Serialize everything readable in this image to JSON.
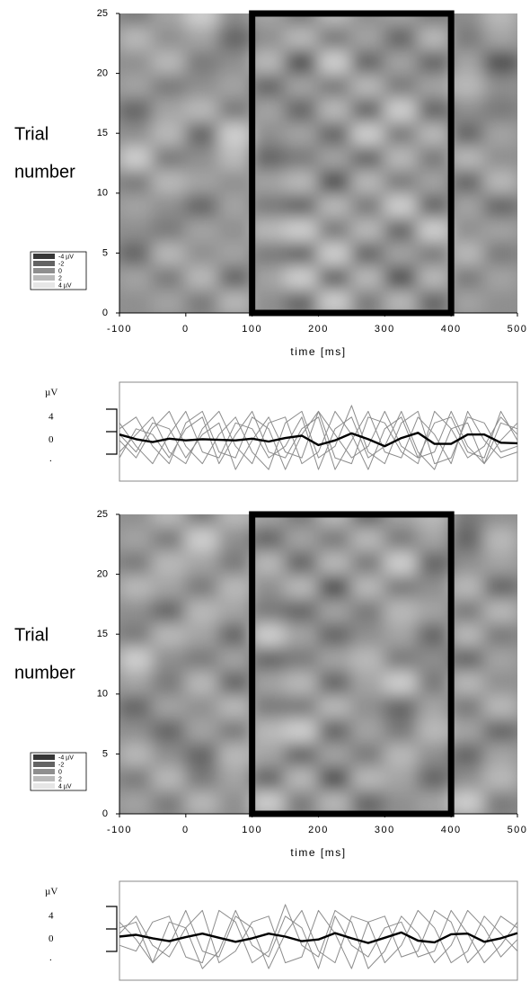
{
  "chart_data": [
    {
      "type": "heatmap",
      "ylabel_lines": [
        "Trial",
        "number"
      ],
      "xlabel": "time [ms]",
      "xlim": [
        -100,
        500
      ],
      "xticks": [
        -100,
        0,
        100,
        200,
        300,
        400,
        500
      ],
      "ylim": [
        0,
        25
      ],
      "yticks": [
        0,
        5,
        10,
        15,
        20,
        25
      ],
      "highlight_x": [
        100,
        400
      ],
      "zlim": [
        -4,
        4
      ],
      "legend_ticks": [
        {
          "value": -4,
          "label": "-4 µV"
        },
        -2,
        0,
        2,
        {
          "value": 4,
          "label": "4 µV"
        }
      ],
      "x": [
        -75,
        -25,
        25,
        75,
        125,
        175,
        225,
        275,
        325,
        375,
        425,
        475
      ],
      "y": [
        1,
        3,
        5,
        7,
        9,
        11,
        13,
        15,
        17,
        19,
        21,
        23,
        25
      ],
      "z": [
        [
          0,
          1,
          -1,
          2,
          0,
          -2,
          3,
          -1,
          2,
          -2,
          1,
          0
        ],
        [
          1,
          -1,
          2,
          -2,
          1,
          3,
          -2,
          2,
          -3,
          2,
          -1,
          1
        ],
        [
          -2,
          2,
          0,
          1,
          -1,
          -2,
          3,
          -2,
          1,
          -1,
          2,
          -1
        ],
        [
          0,
          -1,
          1,
          0,
          2,
          3,
          -1,
          2,
          -2,
          3,
          0,
          1
        ],
        [
          1,
          0,
          -2,
          1,
          -1,
          -2,
          2,
          -1,
          3,
          -2,
          1,
          -2
        ],
        [
          -1,
          2,
          1,
          0,
          1,
          2,
          -3,
          2,
          -1,
          1,
          -2,
          2
        ],
        [
          3,
          -1,
          0,
          2,
          -2,
          -1,
          1,
          -2,
          2,
          -1,
          2,
          0
        ],
        [
          0,
          2,
          -2,
          3,
          0,
          1,
          -2,
          3,
          -1,
          2,
          -2,
          1
        ],
        [
          -2,
          1,
          2,
          -1,
          1,
          -2,
          2,
          -2,
          3,
          -2,
          0,
          -1
        ],
        [
          1,
          -1,
          0,
          1,
          -2,
          1,
          -1,
          2,
          -1,
          1,
          2,
          0
        ],
        [
          0,
          2,
          -1,
          0,
          2,
          -3,
          3,
          -2,
          1,
          -2,
          1,
          -3
        ],
        [
          2,
          0,
          1,
          -2,
          0,
          2,
          -1,
          1,
          -2,
          2,
          -1,
          1
        ],
        [
          -1,
          1,
          3,
          0,
          1,
          -1,
          2,
          0,
          1,
          -1,
          0,
          2
        ]
      ]
    },
    {
      "type": "line",
      "unit": "µV",
      "yticks": [
        4,
        0
      ],
      "ytick_extra": ".",
      "xlim": [
        -100,
        500
      ],
      "ylim": [
        -7,
        10
      ],
      "x": [
        -100,
        -75,
        -50,
        -25,
        0,
        25,
        50,
        75,
        100,
        125,
        150,
        175,
        200,
        225,
        250,
        275,
        300,
        325,
        350,
        375,
        400,
        425,
        450,
        475,
        500
      ],
      "series": [
        {
          "color": "#8c8c8c",
          "values": [
            2,
            4,
            -1,
            -4,
            3,
            5,
            -2,
            -3,
            4,
            2,
            -5,
            1,
            5,
            -3,
            -4,
            4,
            3,
            -2,
            -4,
            5,
            2,
            -3,
            -1,
            4,
            1
          ]
        },
        {
          "color": "#8c8c8c",
          "values": [
            -2,
            1,
            4,
            -2,
            -4,
            2,
            5,
            -1,
            -4,
            3,
            4,
            -4,
            -2,
            5,
            1,
            -5,
            2,
            4,
            -3,
            -2,
            5,
            -1,
            -4,
            3,
            2
          ]
        },
        {
          "color": "#8c8c8c",
          "values": [
            0,
            -3,
            2,
            5,
            -1,
            -4,
            1,
            4,
            -2,
            -5,
            3,
            5,
            -3,
            -1,
            6,
            -2,
            -4,
            3,
            5,
            -4,
            -3,
            4,
            3,
            -2,
            -1
          ]
        },
        {
          "color": "#8c8c8c",
          "values": [
            3,
            -1,
            -4,
            1,
            5,
            -2,
            -3,
            3,
            2,
            -3,
            -1,
            4,
            -5,
            2,
            4,
            -3,
            -1,
            5,
            -2,
            -5,
            2,
            3,
            -4,
            0,
            3
          ]
        },
        {
          "color": "#8c8c8c",
          "values": [
            -3,
            2,
            1,
            -3,
            2,
            4,
            -4,
            1,
            5,
            -2,
            -3,
            2,
            4,
            -5,
            0,
            5,
            -2,
            -3,
            4,
            1,
            -4,
            5,
            0,
            -3,
            -2
          ]
        },
        {
          "color": "#8c8c8c",
          "values": [
            1,
            -2,
            3,
            2,
            -3,
            1,
            3,
            -5,
            0,
            4,
            -2,
            -3,
            5,
            1,
            -3,
            -1,
            5,
            -1,
            -3,
            3,
            4,
            -2,
            -3,
            5,
            0
          ]
        },
        {
          "color": "#000000",
          "values": [
            1,
            0.2,
            -0.3,
            0.3,
            0,
            0.2,
            0.1,
            0,
            0.3,
            -0.2,
            0.4,
            0.8,
            -0.8,
            0,
            1.2,
            0.2,
            -1,
            0.4,
            1.3,
            -0.6,
            -0.6,
            1,
            1,
            -0.4,
            -0.5
          ]
        }
      ]
    },
    {
      "type": "heatmap",
      "ylabel_lines": [
        "Trial",
        "number"
      ],
      "xlabel": "time [ms]",
      "xlim": [
        -100,
        500
      ],
      "xticks": [
        -100,
        0,
        100,
        200,
        300,
        400,
        500
      ],
      "ylim": [
        0,
        25
      ],
      "yticks": [
        0,
        5,
        10,
        15,
        20,
        25
      ],
      "highlight_x": [
        100,
        400
      ],
      "zlim": [
        -4,
        4
      ],
      "legend_ticks": [
        {
          "value": -4,
          "label": "-4 µV"
        },
        -2,
        0,
        2,
        {
          "value": 4,
          "label": "4 µV"
        }
      ],
      "x": [
        -75,
        -25,
        25,
        75,
        125,
        175,
        225,
        275,
        325,
        375,
        425,
        475
      ],
      "y": [
        1,
        3,
        5,
        7,
        9,
        11,
        13,
        15,
        17,
        19,
        21,
        23,
        25
      ],
      "z": [
        [
          1,
          -1,
          2,
          0,
          3,
          -1,
          2,
          -2,
          0,
          1,
          3,
          -1
        ],
        [
          -1,
          2,
          -1,
          1,
          -2,
          2,
          -3,
          2,
          1,
          -2,
          0,
          2
        ],
        [
          2,
          0,
          -2,
          2,
          1,
          -2,
          1,
          -1,
          2,
          0,
          -2,
          1
        ],
        [
          0,
          -2,
          1,
          -1,
          2,
          3,
          -2,
          1,
          -1,
          2,
          1,
          -2
        ],
        [
          -2,
          1,
          0,
          2,
          -1,
          -1,
          2,
          0,
          -2,
          1,
          -1,
          2
        ],
        [
          1,
          -1,
          2,
          -2,
          1,
          2,
          -2,
          1,
          3,
          -1,
          2,
          0
        ],
        [
          3,
          0,
          -1,
          1,
          -2,
          -1,
          1,
          2,
          -1,
          0,
          -2,
          1
        ],
        [
          -1,
          2,
          1,
          -2,
          3,
          1,
          -2,
          0,
          1,
          -2,
          2,
          -1
        ],
        [
          0,
          -2,
          2,
          1,
          -1,
          -2,
          1,
          -1,
          2,
          1,
          -1,
          2
        ],
        [
          2,
          1,
          -1,
          2,
          0,
          2,
          -3,
          2,
          -1,
          0,
          2,
          -2
        ],
        [
          -1,
          2,
          1,
          -1,
          2,
          -2,
          2,
          -1,
          3,
          -2,
          0,
          1
        ],
        [
          1,
          -1,
          3,
          0,
          -2,
          1,
          -1,
          2,
          -1,
          1,
          -2,
          2
        ],
        [
          0,
          2,
          -1,
          2,
          1,
          -1,
          2,
          -2,
          1,
          2,
          -1,
          0
        ]
      ]
    },
    {
      "type": "line",
      "unit": "µV",
      "yticks": [
        4,
        0
      ],
      "ytick_extra": ".",
      "xlim": [
        -100,
        500
      ],
      "ylim": [
        -7,
        10
      ],
      "x": [
        -100,
        -75,
        -50,
        -25,
        0,
        25,
        50,
        75,
        100,
        125,
        150,
        175,
        200,
        225,
        250,
        275,
        300,
        325,
        350,
        375,
        400,
        425,
        450,
        475,
        500
      ],
      "series": [
        {
          "color": "#8c8c8c",
          "values": [
            1,
            4,
            -1,
            -3,
            2,
            5,
            -4,
            -2,
            3,
            4,
            -4,
            -3,
            5,
            1,
            -5,
            3,
            4,
            -3,
            -2,
            5,
            3,
            -4,
            -1,
            4,
            2
          ]
        },
        {
          "color": "#8c8c8c",
          "values": [
            2,
            3,
            -4,
            -1,
            5,
            -2,
            -3,
            4,
            2,
            -5,
            1,
            5,
            -2,
            -4,
            4,
            3,
            -4,
            -1,
            5,
            2,
            -4,
            -2,
            4,
            1,
            -2
          ]
        },
        {
          "color": "#8c8c8c",
          "values": [
            -1,
            -2,
            3,
            4,
            -3,
            -4,
            5,
            3,
            -4,
            -2,
            6,
            -1,
            -3,
            5,
            3,
            -5,
            -2,
            4,
            1,
            -4,
            -1,
            5,
            2,
            -3,
            0
          ]
        },
        {
          "color": "#8c8c8c",
          "values": [
            3,
            0,
            -4,
            3,
            2,
            -5,
            -2,
            5,
            -1,
            -3,
            4,
            2,
            -5,
            4,
            -1,
            -3,
            2,
            3,
            -3,
            -2,
            5,
            1,
            -4,
            -1,
            3
          ]
        },
        {
          "color": "#000000",
          "values": [
            0.5,
            0.8,
            0.2,
            -0.3,
            0.4,
            1,
            0.3,
            -0.4,
            0.2,
            1,
            0.5,
            -0.3,
            0,
            1.1,
            0.2,
            -0.6,
            0.3,
            1.2,
            -0.2,
            -0.5,
            0.9,
            1,
            -0.4,
            0.2,
            1.1
          ]
        }
      ]
    }
  ]
}
